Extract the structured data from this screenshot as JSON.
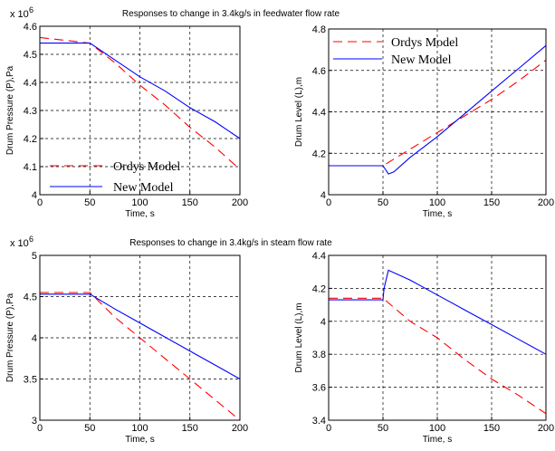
{
  "figure": {
    "top_title": "Responses to change in 3.4kg/s in feedwater flow rate",
    "bottom_title": "Responses to change in 3.4kg/s in steam flow  rate"
  },
  "chart_data": [
    {
      "type": "line",
      "title": "Responses to change in 3.4kg/s in feedwater flow rate",
      "xlabel": "Time, s",
      "ylabel": "Drum Pressure (P),Pa",
      "y_multiplier": "x 10",
      "y_multiplier_exponent": "6",
      "xlim": [
        0,
        200
      ],
      "ylim": [
        4.0,
        4.6
      ],
      "xticks": [
        0,
        50,
        100,
        150,
        200
      ],
      "yticks": [
        4,
        4.1,
        4.2,
        4.3,
        4.4,
        4.5,
        4.6
      ],
      "grid": true,
      "legend_position": "bottom-left",
      "series": [
        {
          "name": "Ordys Model",
          "color": "#ff0000",
          "style": "dashed",
          "x": [
            0,
            25,
            50,
            75,
            100,
            125,
            150,
            175,
            200
          ],
          "y": [
            4.56,
            4.55,
            4.54,
            4.47,
            4.39,
            4.32,
            4.24,
            4.17,
            4.09
          ]
        },
        {
          "name": "New  Model",
          "color": "#0000ff",
          "style": "solid",
          "x": [
            0,
            50,
            75,
            100,
            125,
            150,
            175,
            200
          ],
          "y": [
            4.54,
            4.54,
            4.48,
            4.42,
            4.37,
            4.31,
            4.26,
            4.2
          ]
        }
      ]
    },
    {
      "type": "line",
      "title": "",
      "xlabel": "Time, s",
      "ylabel": "Drum Level (L),m",
      "xlim": [
        0,
        200
      ],
      "ylim": [
        4.0,
        4.8
      ],
      "xticks": [
        0,
        50,
        100,
        150,
        200
      ],
      "yticks": [
        4,
        4.2,
        4.4,
        4.6,
        4.8
      ],
      "grid": true,
      "legend_position": "top-left",
      "series": [
        {
          "name": "Ordys Model",
          "color": "#ff0000",
          "style": "dashed",
          "x": [
            0,
            50,
            75,
            100,
            125,
            150,
            175,
            200
          ],
          "y": [
            4.14,
            4.14,
            4.22,
            4.3,
            4.38,
            4.46,
            4.55,
            4.65
          ]
        },
        {
          "name": "New   Model",
          "color": "#0000ff",
          "style": "solid",
          "x": [
            0,
            50,
            55,
            60,
            75,
            100,
            125,
            150,
            175,
            200
          ],
          "y": [
            4.14,
            4.14,
            4.1,
            4.11,
            4.18,
            4.28,
            4.39,
            4.5,
            4.61,
            4.72
          ]
        }
      ]
    },
    {
      "type": "line",
      "title": "Responses to change in 3.4kg/s in steam flow  rate",
      "xlabel": "Time, s",
      "ylabel": "Drum Pressure (P),Pa",
      "y_multiplier": "x 10",
      "y_multiplier_exponent": "6",
      "xlim": [
        0,
        200
      ],
      "ylim": [
        3.0,
        5.0
      ],
      "xticks": [
        0,
        50,
        100,
        150,
        200
      ],
      "yticks": [
        3,
        3.5,
        4,
        4.5,
        5
      ],
      "grid": true,
      "series": [
        {
          "name": "",
          "color": "#ff0000",
          "style": "dashed",
          "x": [
            0,
            50,
            75,
            100,
            125,
            150,
            175,
            200
          ],
          "y": [
            4.55,
            4.55,
            4.25,
            4.0,
            3.75,
            3.5,
            3.25,
            3.0
          ]
        },
        {
          "name": "",
          "color": "#0000ff",
          "style": "solid",
          "x": [
            0,
            50,
            75,
            100,
            125,
            150,
            175,
            200
          ],
          "y": [
            4.53,
            4.53,
            4.35,
            4.18,
            4.01,
            3.84,
            3.67,
            3.5
          ]
        }
      ]
    },
    {
      "type": "line",
      "title": "",
      "xlabel": "Time, s",
      "ylabel": "Drum Level (L),m",
      "xlim": [
        0,
        200
      ],
      "ylim": [
        3.4,
        4.4
      ],
      "xticks": [
        0,
        50,
        100,
        150,
        200
      ],
      "yticks": [
        3.4,
        3.6,
        3.8,
        4,
        4.2,
        4.4
      ],
      "grid": true,
      "series": [
        {
          "name": "",
          "color": "#ff0000",
          "style": "dashed",
          "x": [
            0,
            50,
            75,
            100,
            125,
            150,
            175,
            200
          ],
          "y": [
            4.14,
            4.14,
            4.0,
            3.9,
            3.77,
            3.65,
            3.55,
            3.44
          ]
        },
        {
          "name": "",
          "color": "#0000ff",
          "style": "solid",
          "x": [
            0,
            50,
            51,
            55,
            75,
            100,
            125,
            150,
            175,
            200
          ],
          "y": [
            4.13,
            4.13,
            4.2,
            4.31,
            4.25,
            4.16,
            4.07,
            3.98,
            3.89,
            3.8
          ]
        }
      ]
    }
  ]
}
